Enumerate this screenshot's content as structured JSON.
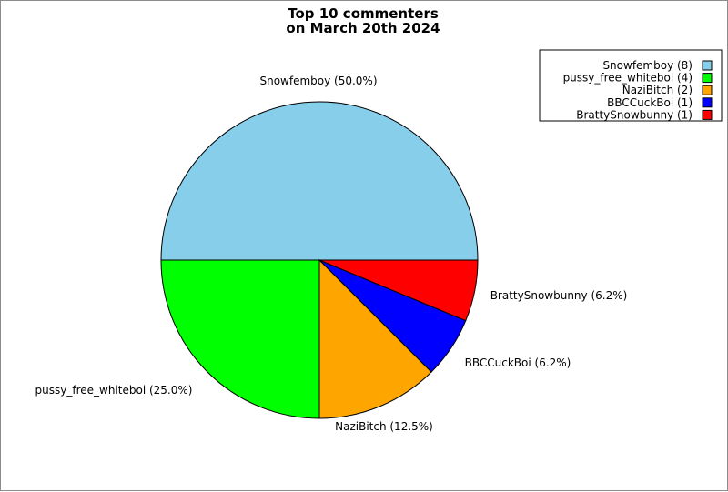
{
  "chart_data": {
    "type": "pie",
    "title_lines": [
      "Top 10 commenters",
      "on March 20th 2024"
    ],
    "slices": [
      {
        "name": "Snowfemboy",
        "count": 8,
        "percent_label": "50.0%",
        "color": "#87ceeb",
        "legend_text": "Snowfemboy (8)",
        "label_text": "Snowfemboy (50.0%)"
      },
      {
        "name": "pussy_free_whiteboi",
        "count": 4,
        "percent_label": "25.0%",
        "color": "#00ff00",
        "legend_text": "pussy_free_whiteboi (4)",
        "label_text": "pussy_free_whiteboi (25.0%)"
      },
      {
        "name": "NaziBitch",
        "count": 2,
        "percent_label": "12.5%",
        "color": "#ffa500",
        "legend_text": "NaziBitch (2)",
        "label_text": "NaziBitch (12.5%)"
      },
      {
        "name": "BBCCuckBoi",
        "count": 1,
        "percent_label": "6.2%",
        "color": "#0000ff",
        "legend_text": "BBCCuckBoi (1)",
        "label_text": "BBCCuckBoi (6.2%)"
      },
      {
        "name": "BrattySnowbunny",
        "count": 1,
        "percent_label": "6.2%",
        "color": "#ff0000",
        "legend_text": "BrattySnowbunny (1)",
        "label_text": "BrattySnowbunny (6.2%)"
      }
    ],
    "legend_placement": "top-right",
    "start_angle": "3 o'clock",
    "direction": "counter-clockwise"
  }
}
